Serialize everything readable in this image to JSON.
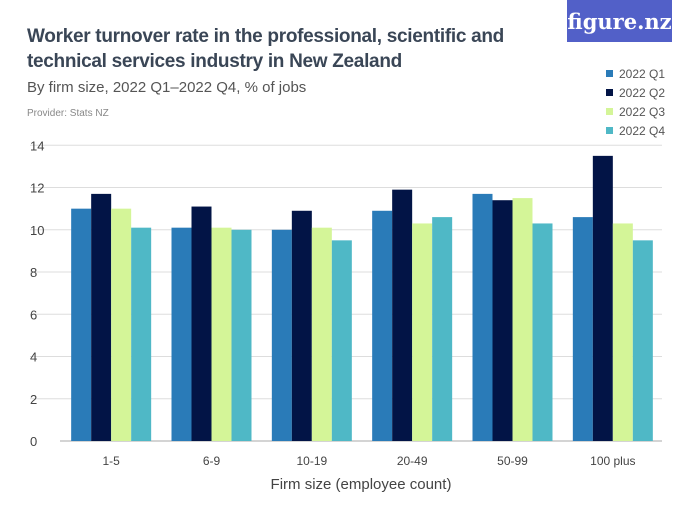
{
  "title": "Worker turnover rate in the professional, scientific and technical services industry in New Zealand",
  "subtitle": "By firm size, 2022 Q1–2022 Q4, % of jobs",
  "provider": "Provider: Stats NZ",
  "logo": "figure.nz",
  "chart_data": {
    "type": "bar",
    "categories": [
      "1-5",
      "6-9",
      "10-19",
      "20-49",
      "50-99",
      "100 plus"
    ],
    "series": [
      {
        "name": "2022 Q1",
        "color": "#2a7bb8",
        "values": [
          11.0,
          10.1,
          10.0,
          10.9,
          11.7,
          10.6
        ]
      },
      {
        "name": "2022 Q2",
        "color": "#021446",
        "values": [
          11.7,
          11.1,
          10.9,
          11.9,
          11.4,
          13.5
        ]
      },
      {
        "name": "2022 Q3",
        "color": "#d4f598",
        "values": [
          11.0,
          10.1,
          10.1,
          10.3,
          11.5,
          10.3
        ]
      },
      {
        "name": "2022 Q4",
        "color": "#4fb8c6",
        "values": [
          10.1,
          10.0,
          9.5,
          10.6,
          10.3,
          9.5
        ]
      }
    ],
    "xlabel": "Firm size (employee count)",
    "ylabel": "",
    "ylim": [
      0,
      14
    ],
    "yticks": [
      0,
      2,
      4,
      6,
      8,
      10,
      12,
      14
    ],
    "grid": true,
    "legend": "top-right"
  }
}
